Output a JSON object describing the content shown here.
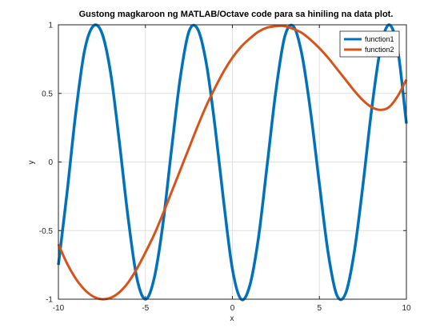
{
  "chart_data": {
    "type": "line",
    "title": "Gustong magkaroon ng MATLAB/Octave code para sa hiniling na data plot.",
    "xlabel": "x",
    "ylabel": "y",
    "xlim": [
      -10,
      10
    ],
    "ylim": [
      -1,
      1
    ],
    "xticks": [
      -10,
      -5,
      0,
      5,
      10
    ],
    "xtick_labels": [
      "-10",
      "-5",
      "0",
      "5",
      "10"
    ],
    "yticks": [
      -1,
      -0.5,
      0,
      0.5,
      1
    ],
    "ytick_labels": [
      "-1",
      "-0.5",
      "0",
      "0.5",
      "1"
    ],
    "grid": true,
    "legend_position": "top-right",
    "series": [
      {
        "name": "function1",
        "color": "#0072BD",
        "x": [
          -10.0,
          -9.5,
          -9.0,
          -8.5,
          -8.0,
          -7.5,
          -7.0,
          -6.5,
          -6.0,
          -5.5,
          -5.0,
          -4.5,
          -4.0,
          -3.5,
          -3.0,
          -2.5,
          -2.0,
          -1.5,
          -1.0,
          -0.5,
          0.0,
          0.5,
          1.0,
          1.5,
          2.0,
          2.5,
          3.0,
          3.5,
          4.0,
          4.5,
          5.0,
          5.5,
          6.0,
          6.5,
          7.0,
          7.5,
          8.0,
          8.5,
          9.0,
          9.5,
          10.0
        ],
        "y": [
          -0.75,
          -0.22,
          0.36,
          0.81,
          0.99,
          0.94,
          0.65,
          0.15,
          -0.4,
          -0.84,
          -1.0,
          -0.85,
          -0.46,
          0.09,
          0.61,
          0.95,
          0.97,
          0.72,
          0.26,
          -0.29,
          -0.78,
          -1.0,
          -0.9,
          -0.55,
          -0.02,
          0.52,
          0.91,
          0.99,
          0.78,
          0.36,
          -0.16,
          -0.66,
          -0.97,
          -0.96,
          -0.66,
          -0.17,
          0.38,
          0.82,
          1.0,
          0.82,
          0.28
        ]
      },
      {
        "name": "function2",
        "color": "#D95319",
        "x": [
          -10.0,
          -9.5,
          -9.0,
          -8.5,
          -8.0,
          -7.5,
          -7.0,
          -6.5,
          -6.0,
          -5.5,
          -5.0,
          -4.5,
          -4.0,
          -3.5,
          -3.0,
          -2.5,
          -2.0,
          -1.5,
          -1.0,
          -0.5,
          0.0,
          0.5,
          1.0,
          1.5,
          2.0,
          2.5,
          3.0,
          3.5,
          4.0,
          4.5,
          5.0,
          5.5,
          6.0,
          6.5,
          7.0,
          7.5,
          8.0,
          8.5,
          9.0,
          9.5,
          10.0
        ],
        "y": [
          -0.6,
          -0.74,
          -0.85,
          -0.93,
          -0.98,
          -1.0,
          -0.99,
          -0.95,
          -0.88,
          -0.78,
          -0.66,
          -0.53,
          -0.38,
          -0.22,
          -0.06,
          0.1,
          0.26,
          0.41,
          0.54,
          0.66,
          0.76,
          0.84,
          0.9,
          0.95,
          0.98,
          0.99,
          0.99,
          0.97,
          0.94,
          0.89,
          0.83,
          0.76,
          0.68,
          0.6,
          0.52,
          0.45,
          0.4,
          0.38,
          0.4,
          0.48,
          0.6
        ]
      }
    ]
  }
}
